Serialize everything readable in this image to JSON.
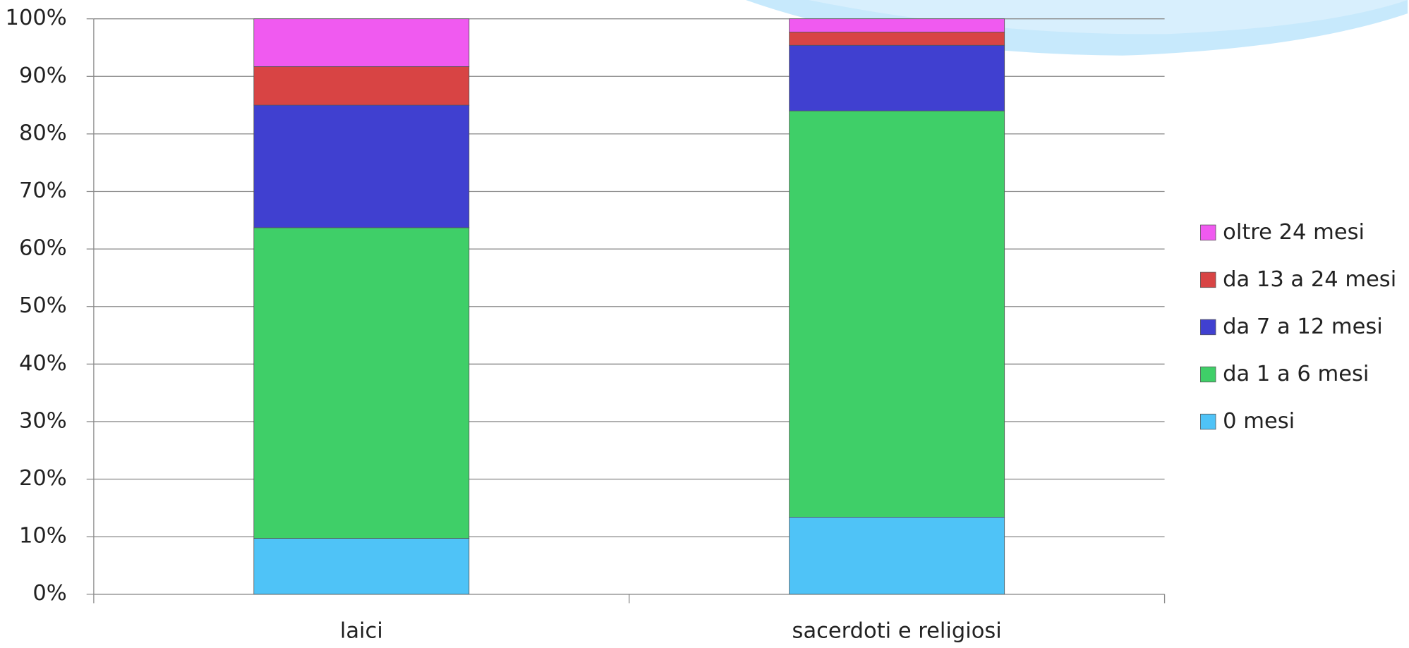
{
  "chart_data": {
    "type": "stacked_bar",
    "categories": [
      "laici",
      "sacerdoti e religiosi"
    ],
    "series": [
      {
        "name": "0 mesi",
        "color": "#4fc3f7",
        "values": [
          9.7,
          13.4
        ]
      },
      {
        "name": "da 1 a 6 mesi",
        "color": "#3fcf68",
        "values": [
          54.0,
          70.6
        ]
      },
      {
        "name": "da 7 a 12 mesi",
        "color": "#4040d0",
        "values": [
          21.3,
          11.4
        ]
      },
      {
        "name": "da 13 a 24 mesi",
        "color": "#d84444",
        "values": [
          6.7,
          2.3
        ]
      },
      {
        "name": "oltre 24 mesi",
        "color": "#f05af0",
        "values": [
          8.3,
          2.3
        ]
      }
    ],
    "ylim": [
      0,
      100
    ],
    "yticks": [
      {
        "value": 0,
        "label": "0%"
      },
      {
        "value": 10,
        "label": "10%"
      },
      {
        "value": 20,
        "label": "20%"
      },
      {
        "value": 30,
        "label": "30%"
      },
      {
        "value": 40,
        "label": "40%"
      },
      {
        "value": 50,
        "label": "50%"
      },
      {
        "value": 60,
        "label": "60%"
      },
      {
        "value": 70,
        "label": "70%"
      },
      {
        "value": 80,
        "label": "80%"
      },
      {
        "value": 90,
        "label": "90%"
      },
      {
        "value": 100,
        "label": "100%"
      }
    ],
    "grid": true,
    "legend": "right"
  }
}
